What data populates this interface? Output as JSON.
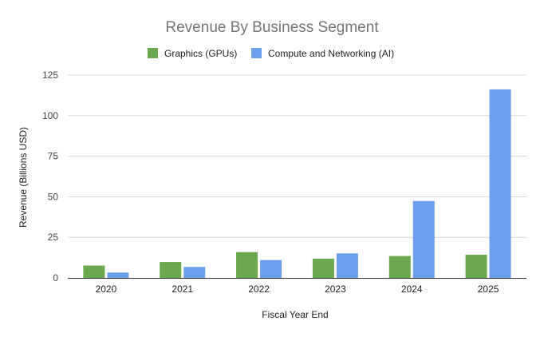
{
  "chart_data": {
    "type": "bar",
    "title": "Revenue By Business Segment",
    "xlabel": "Fiscal Year End",
    "ylabel": "Revenue (Billions USD)",
    "categories": [
      "2020",
      "2021",
      "2022",
      "2023",
      "2024",
      "2025"
    ],
    "ylim": [
      0,
      125
    ],
    "yticks": [
      0,
      25,
      50,
      75,
      100,
      125
    ],
    "ytick_labels": [
      "0",
      "25",
      "50",
      "75",
      "100",
      "125"
    ],
    "grid": true,
    "legend_position": "top-center",
    "series": [
      {
        "name": "Graphics (GPUs)",
        "color": "#6aa84f",
        "values": [
          7.6,
          9.8,
          15.9,
          11.9,
          13.5,
          14.3
        ]
      },
      {
        "name": "Compute and Networking (AI)",
        "color": "#6d9eeb",
        "values": [
          3.3,
          6.8,
          11.0,
          15.1,
          47.4,
          116.2
        ]
      }
    ]
  }
}
